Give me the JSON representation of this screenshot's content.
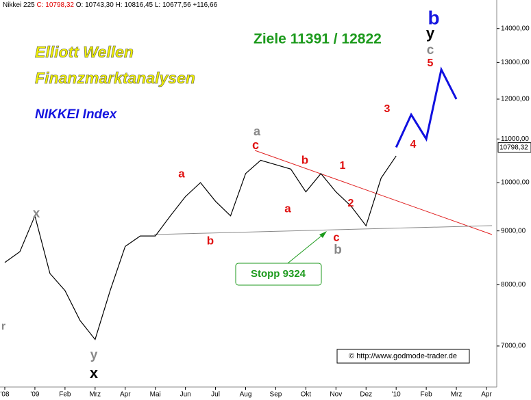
{
  "chart_data": {
    "type": "line",
    "header": {
      "name": "Nikkei 225",
      "close": "C: 10798,32",
      "rest": "O: 10743,30 H: 10816,45 L: 10677,56 +116,66"
    },
    "titles": [
      "Elliott Wellen",
      "Finanzmarktanalysen",
      "NIKKEI Index",
      "Ziele 11391 / 12822"
    ],
    "categories": [
      "'08",
      null,
      "'09",
      null,
      "Feb",
      null,
      "Mrz",
      null,
      "Apr",
      null,
      "Mai",
      null,
      "Jun",
      null,
      "Jul",
      null,
      "Aug",
      null,
      "Sep",
      null,
      "Okt",
      null,
      "Nov",
      null,
      "Dez",
      null,
      "'10",
      null,
      "Feb",
      null,
      "Mrz",
      null,
      "Apr"
    ],
    "values": [
      8400,
      8600,
      9300,
      8200,
      7900,
      7400,
      7100,
      7900,
      8700,
      8900,
      8900,
      9300,
      9700,
      10000,
      9600,
      9300,
      10200,
      10500,
      10400,
      10300,
      9800,
      10200,
      9800,
      9500,
      9100,
      10100,
      10600,
      null,
      null,
      null,
      null,
      null,
      null
    ],
    "color": "#000000",
    "projection": {
      "color": "#1010e0",
      "values": [
        null,
        null,
        null,
        null,
        null,
        null,
        null,
        null,
        null,
        null,
        null,
        null,
        null,
        null,
        null,
        null,
        null,
        null,
        null,
        null,
        null,
        null,
        null,
        null,
        null,
        null,
        10800,
        11600,
        11000,
        12800,
        12000,
        null,
        null
      ]
    },
    "last_label": {
      "value": 10798.32,
      "label": "10798,32"
    },
    "log_scale": true,
    "ylim": [
      6400,
      14900
    ],
    "yticks": [
      {
        "value": 7000,
        "label": "7000,00"
      },
      {
        "value": 8000,
        "label": "8000,00"
      },
      {
        "value": 9000,
        "label": "9000,00"
      },
      {
        "value": 10000,
        "label": "10000,00"
      },
      {
        "value": 11000,
        "label": "11000,00"
      },
      {
        "value": 12000,
        "label": "12000,00"
      },
      {
        "value": 13000,
        "label": "13000,00"
      },
      {
        "value": 14000,
        "label": "14000,00"
      }
    ],
    "grid": false,
    "wave_labels": [
      "a",
      "c",
      "a",
      "b",
      "x",
      "y",
      "x",
      "b",
      "a",
      "1",
      "2",
      "c",
      "b",
      "3",
      "4",
      "5",
      "c",
      "y",
      "b",
      "r"
    ],
    "stop_label": "Stopp 9324",
    "copyright": "© http://www.godmode-trader.de"
  }
}
